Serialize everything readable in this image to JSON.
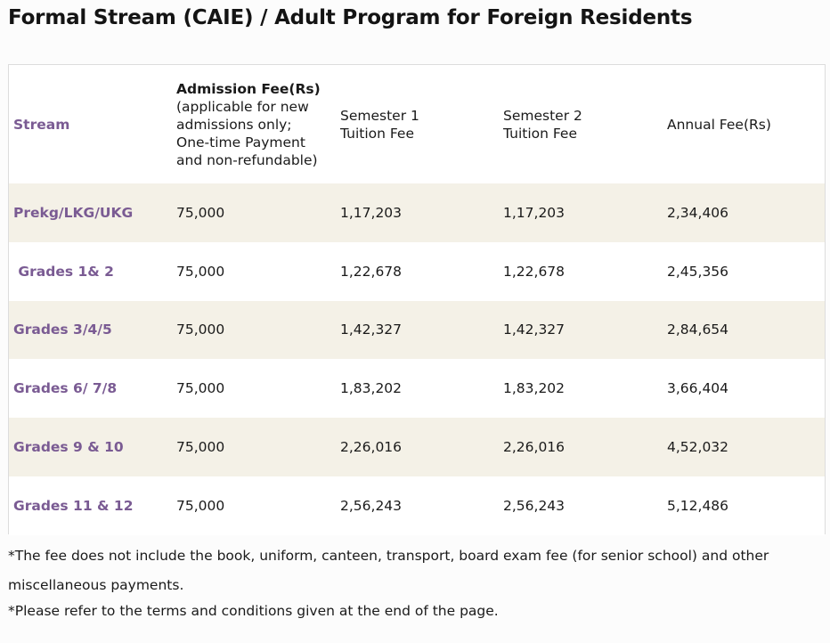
{
  "page_title": "Formal Stream (CAIE) / Adult Program for Foreign Residents",
  "table": {
    "headers": {
      "stream": "Stream",
      "admission_title": "Admission Fee(Rs)",
      "admission_note_lines": [
        "(applicable for new",
        "admissions only;",
        "One-time Payment",
        "and non-refundable)"
      ],
      "semester1_lines": [
        "Semester 1",
        "Tuition Fee"
      ],
      "semester2_lines": [
        "Semester 2",
        "Tuition Fee"
      ],
      "annual": "Annual Fee(Rs)"
    },
    "rows": [
      {
        "stream": "Prekg/LKG/UKG",
        "admission": "75,000",
        "sem1": "1,17,203",
        "sem2": "1,17,203",
        "annual": "2,34,406"
      },
      {
        "stream": " Grades 1& 2",
        "admission": "75,000",
        "sem1": "1,22,678",
        "sem2": "1,22,678",
        "annual": "2,45,356"
      },
      {
        "stream": "Grades 3/4/5",
        "admission": "75,000",
        "sem1": "1,42,327",
        "sem2": "1,42,327",
        "annual": "2,84,654"
      },
      {
        "stream": "Grades 6/ 7/8",
        "admission": "75,000",
        "sem1": "1,83,202",
        "sem2": "1,83,202",
        "annual": "3,66,404"
      },
      {
        "stream": "Grades 9 & 10",
        "admission": "75,000",
        "sem1": "2,26,016",
        "sem2": "2,26,016",
        "annual": "4,52,032"
      },
      {
        "stream": "Grades 11 & 12",
        "admission": "75,000",
        "sem1": "2,56,243",
        "sem2": "2,56,243",
        "annual": "5,12,486"
      }
    ]
  },
  "notes": {
    "note1_line1": "*The fee does not include the book, uniform, canteen, transport, board exam fee (for senior school) and other",
    "note1_line2": "miscellaneous payments.",
    "note2": "*Please refer to the terms and conditions given at the end of the page."
  },
  "colors": {
    "stream_text": "#7a5b93",
    "shaded_row": "#f4f1e7"
  }
}
